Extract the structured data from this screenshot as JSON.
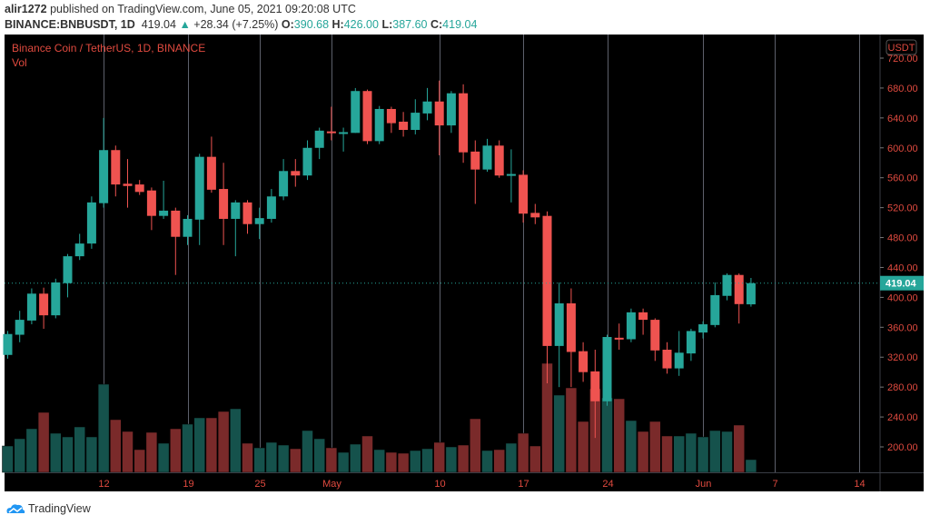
{
  "header": {
    "user": "alir1272",
    "published": "published on TradingView.com, June 05, 2021 09:20:08 UTC",
    "symbol": "BINANCE:BNBUSDT, 1D",
    "last": "419.04",
    "change": "+28.34 (+7.25%)",
    "o_label": "O:",
    "o": "390.68",
    "h_label": "H:",
    "h": "426.00",
    "l_label": "L:",
    "l": "387.60",
    "c_label": "C:",
    "c": "419.04"
  },
  "legend": {
    "title": "Binance Coin / TetherUS, 1D, BINANCE",
    "vol": "Vol"
  },
  "footer": {
    "brand": "TradingView"
  },
  "colors": {
    "up": "#26a69a",
    "down": "#ef5350",
    "vol_up": "#15524c",
    "vol_down": "#7a2a2a",
    "axis_text": "#e04a3f",
    "grid": "#5d606b"
  },
  "chart_data": {
    "type": "candlestick",
    "title": "Binance Coin / TetherUS, 1D, BINANCE",
    "currency": "USDT",
    "ylim": [
      160,
      730
    ],
    "yticks": [
      "200.00",
      "240.00",
      "280.00",
      "320.00",
      "360.00",
      "400.00",
      "440.00",
      "480.00",
      "520.00",
      "560.00",
      "600.00",
      "640.00",
      "680.00",
      "720.00"
    ],
    "ytick_values": [
      200,
      240,
      280,
      320,
      360,
      400,
      440,
      480,
      520,
      560,
      600,
      640,
      680,
      720
    ],
    "last_price": 419.04,
    "last_price_label": "419.04",
    "xticks": [
      {
        "label": "12",
        "index": 8
      },
      {
        "label": "19",
        "index": 15
      },
      {
        "label": "25",
        "index": 21
      },
      {
        "label": "May",
        "index": 27
      },
      {
        "label": "10",
        "index": 36
      },
      {
        "label": "17",
        "index": 43
      },
      {
        "label": "24",
        "index": 50
      },
      {
        "label": "Jun",
        "index": 58
      },
      {
        "label": "7",
        "index": 64
      },
      {
        "label": "14",
        "index": 71
      }
    ],
    "dates": [
      "2021-04-04",
      "2021-04-05",
      "2021-04-06",
      "2021-04-07",
      "2021-04-08",
      "2021-04-09",
      "2021-04-10",
      "2021-04-11",
      "2021-04-12",
      "2021-04-13",
      "2021-04-14",
      "2021-04-15",
      "2021-04-16",
      "2021-04-17",
      "2021-04-18",
      "2021-04-19",
      "2021-04-20",
      "2021-04-21",
      "2021-04-22",
      "2021-04-23",
      "2021-04-24",
      "2021-04-25",
      "2021-04-26",
      "2021-04-27",
      "2021-04-28",
      "2021-04-29",
      "2021-04-30",
      "2021-05-01",
      "2021-05-02",
      "2021-05-03",
      "2021-05-04",
      "2021-05-05",
      "2021-05-06",
      "2021-05-07",
      "2021-05-08",
      "2021-05-09",
      "2021-05-10",
      "2021-05-11",
      "2021-05-12",
      "2021-05-13",
      "2021-05-14",
      "2021-05-15",
      "2021-05-16",
      "2021-05-17",
      "2021-05-18",
      "2021-05-19",
      "2021-05-20",
      "2021-05-21",
      "2021-05-22",
      "2021-05-23",
      "2021-05-24",
      "2021-05-25",
      "2021-05-26",
      "2021-05-27",
      "2021-05-28",
      "2021-05-29",
      "2021-05-30",
      "2021-05-31",
      "2021-06-01",
      "2021-06-02",
      "2021-06-03",
      "2021-06-04",
      "2021-06-05"
    ],
    "ohlc": [
      [
        323,
        355,
        318,
        351
      ],
      [
        350,
        382,
        340,
        370
      ],
      [
        369,
        412,
        364,
        405
      ],
      [
        405,
        413,
        358,
        376
      ],
      [
        376,
        425,
        372,
        420
      ],
      [
        419,
        458,
        400,
        455
      ],
      [
        455,
        485,
        450,
        472
      ],
      [
        472,
        535,
        465,
        527
      ],
      [
        526,
        640,
        520,
        597
      ],
      [
        597,
        603,
        535,
        551
      ],
      [
        552,
        585,
        520,
        549
      ],
      [
        551,
        557,
        537,
        541
      ],
      [
        543,
        547,
        490,
        509
      ],
      [
        509,
        556,
        505,
        516
      ],
      [
        516,
        520,
        430,
        481
      ],
      [
        481,
        510,
        470,
        505
      ],
      [
        504,
        592,
        470,
        588
      ],
      [
        588,
        615,
        540,
        544
      ],
      [
        545,
        580,
        470,
        505
      ],
      [
        505,
        530,
        455,
        527
      ],
      [
        527,
        530,
        485,
        498
      ],
      [
        498,
        520,
        478,
        506
      ],
      [
        505,
        545,
        500,
        535
      ],
      [
        535,
        585,
        530,
        569
      ],
      [
        569,
        585,
        548,
        563
      ],
      [
        563,
        610,
        557,
        600
      ],
      [
        600,
        627,
        585,
        623
      ],
      [
        622,
        655,
        610,
        620
      ],
      [
        620,
        627,
        595,
        621
      ],
      [
        620,
        680,
        620,
        676
      ],
      [
        676,
        678,
        605,
        609
      ],
      [
        609,
        656,
        605,
        652
      ],
      [
        652,
        655,
        620,
        633
      ],
      [
        635,
        648,
        615,
        624
      ],
      [
        624,
        665,
        618,
        647
      ],
      [
        646,
        680,
        637,
        662
      ],
      [
        662,
        690,
        590,
        630
      ],
      [
        630,
        676,
        620,
        673
      ],
      [
        673,
        685,
        580,
        594
      ],
      [
        595,
        610,
        525,
        571
      ],
      [
        571,
        612,
        568,
        603
      ],
      [
        603,
        610,
        560,
        563
      ],
      [
        564,
        598,
        527,
        565
      ],
      [
        564,
        570,
        500,
        512
      ],
      [
        513,
        525,
        498,
        507
      ],
      [
        509,
        515,
        285,
        335
      ],
      [
        335,
        420,
        280,
        392
      ],
      [
        392,
        412,
        280,
        327
      ],
      [
        328,
        340,
        287,
        300
      ],
      [
        301,
        330,
        212,
        261
      ],
      [
        261,
        350,
        255,
        347
      ],
      [
        346,
        365,
        330,
        344
      ],
      [
        344,
        385,
        340,
        380
      ],
      [
        380,
        385,
        350,
        370
      ],
      [
        370,
        372,
        315,
        329
      ],
      [
        330,
        340,
        298,
        305
      ],
      [
        305,
        355,
        295,
        326
      ],
      [
        325,
        358,
        315,
        355
      ],
      [
        353,
        368,
        345,
        364
      ],
      [
        363,
        420,
        360,
        403
      ],
      [
        402,
        432,
        396,
        430
      ],
      [
        430,
        432,
        365,
        391
      ],
      [
        390.68,
        426,
        387.6,
        419.04
      ]
    ],
    "volume_relative": [
      29,
      37,
      48,
      66,
      43,
      39,
      50,
      39,
      97,
      58,
      45,
      25,
      44,
      32,
      48,
      53,
      60,
      60,
      67,
      70,
      32,
      27,
      33,
      30,
      26,
      46,
      37,
      27,
      22,
      31,
      40,
      25,
      22,
      21,
      24,
      26,
      33,
      28,
      30,
      59,
      24,
      25,
      32,
      43,
      29,
      120,
      85,
      93,
      56,
      92,
      82,
      81,
      57,
      45,
      56,
      40,
      40,
      43,
      39,
      46,
      45,
      52,
      14
    ]
  }
}
